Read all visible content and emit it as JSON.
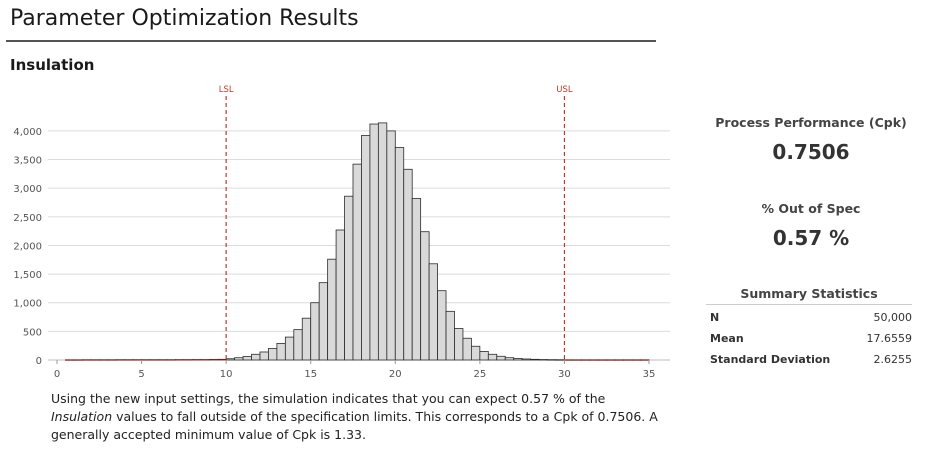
{
  "header": {
    "title": "Parameter Optimization Results"
  },
  "section": {
    "title": "Insulation"
  },
  "metrics": {
    "cpk_label": "Process Performance (Cpk)",
    "cpk_value": "0.7506",
    "oos_label": "% Out of Spec",
    "oos_value": "0.57 %"
  },
  "summary": {
    "title": "Summary Statistics",
    "rows": [
      {
        "label": "N",
        "value": "50,000"
      },
      {
        "label": "Mean",
        "value": "17.6559"
      },
      {
        "label": "Standard Deviation",
        "value": "2.6255"
      }
    ]
  },
  "description": {
    "before": "Using the new input settings, the simulation indicates that you can expect 0.57 % of the ",
    "emphasis": "Insulation",
    "after": " values to fall outside of the specification limits. This corresponds to a Cpk of 0.7506. A generally accepted minimum value of Cpk is 1.33."
  },
  "chart_data": {
    "type": "bar",
    "subtype": "histogram",
    "bin_width": 0.5,
    "bin_start": 0.5,
    "counts": [
      4,
      4,
      5,
      5,
      5,
      5,
      6,
      6,
      6,
      6,
      6,
      6,
      6,
      7,
      7,
      8,
      8,
      10,
      12,
      22,
      40,
      60,
      100,
      140,
      200,
      290,
      400,
      530,
      730,
      1000,
      1350,
      1760,
      2270,
      2860,
      3420,
      3920,
      4120,
      4140,
      4000,
      3710,
      3330,
      2820,
      2240,
      1680,
      1210,
      850,
      550,
      380,
      240,
      150,
      100,
      65,
      40,
      28,
      18,
      12,
      8,
      6,
      5,
      4,
      4,
      4,
      4,
      4,
      4,
      4,
      4,
      4,
      4
    ],
    "out_of_spec_color": "#c0392b",
    "in_spec_color": "#d9d9d9",
    "spec_limits": [
      {
        "name": "LSL",
        "value": 10,
        "color": "#c0392b"
      },
      {
        "name": "USL",
        "value": 30,
        "color": "#c0392b"
      }
    ],
    "xlim": [
      0,
      35
    ],
    "ylim": [
      0,
      4400
    ],
    "xticks": [
      0,
      5,
      10,
      15,
      20,
      25,
      30,
      35
    ],
    "xtick_labels": [
      "0",
      "5",
      "10",
      "15",
      "20",
      "25",
      "30",
      "35"
    ],
    "yticks": [
      0,
      500,
      1000,
      1500,
      2000,
      2500,
      3000,
      3500,
      4000
    ],
    "ytick_labels": [
      "0",
      "500",
      "1,000",
      "1,500",
      "2,000",
      "2,500",
      "3,000",
      "3,500",
      "4,000"
    ],
    "grid": true
  }
}
